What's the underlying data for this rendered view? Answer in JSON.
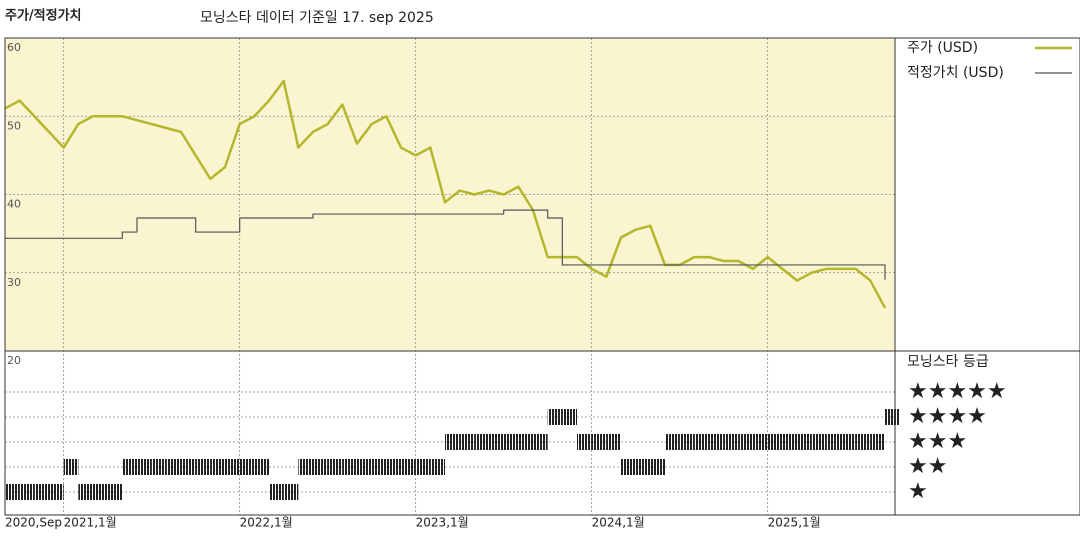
{
  "chart_data": [
    {
      "type": "line",
      "title": "주가/적정가치",
      "subtitle": "모닝스타 데이터 기준일 17. sep 2025",
      "x": [
        "2020-09",
        "2020-10",
        "2020-11",
        "2020-12",
        "2021-01",
        "2021-02",
        "2021-03",
        "2021-04",
        "2021-05",
        "2021-06",
        "2021-07",
        "2021-08",
        "2021-09",
        "2021-10",
        "2021-11",
        "2021-12",
        "2022-01",
        "2022-02",
        "2022-03",
        "2022-04",
        "2022-05",
        "2022-06",
        "2022-07",
        "2022-08",
        "2022-09",
        "2022-10",
        "2022-11",
        "2022-12",
        "2023-01",
        "2023-02",
        "2023-03",
        "2023-04",
        "2023-05",
        "2023-06",
        "2023-07",
        "2023-08",
        "2023-09",
        "2023-10",
        "2023-11",
        "2023-12",
        "2024-01",
        "2024-02",
        "2024-03",
        "2024-04",
        "2024-05",
        "2024-06",
        "2024-07",
        "2024-08",
        "2024-09",
        "2024-10",
        "2024-11",
        "2024-12",
        "2025-01",
        "2025-02",
        "2025-03",
        "2025-04",
        "2025-05",
        "2025-06",
        "2025-07",
        "2025-08",
        "2025-09"
      ],
      "series": [
        {
          "name": "주가 (USD)",
          "color": "#b3b72b",
          "values": [
            51,
            52,
            50,
            48,
            46,
            49,
            50,
            50,
            50,
            49.5,
            49,
            48.5,
            48,
            45,
            42,
            43.5,
            49,
            50,
            52,
            54.5,
            46,
            48,
            49,
            51.5,
            46.5,
            49,
            50,
            46,
            45,
            46,
            39,
            40.5,
            40,
            40.5,
            40,
            41,
            38,
            32,
            32,
            32,
            30.5,
            29.5,
            34.5,
            35.5,
            36,
            31,
            31,
            32,
            32,
            31.5,
            31.5,
            30.5,
            32,
            30.5,
            29,
            30,
            30.5,
            30.5,
            30.5,
            29,
            25.5
          ]
        },
        {
          "name": "적정가치 (USD)",
          "color": "#555555",
          "step": true,
          "values": [
            34.4,
            34.4,
            34.4,
            34.4,
            34.4,
            34.4,
            34.4,
            34.4,
            35.2,
            37,
            37,
            37,
            37,
            35.2,
            35.2,
            35.2,
            37,
            37,
            37,
            37,
            37,
            37.5,
            37.5,
            37.5,
            37.5,
            37.5,
            37.5,
            37.5,
            37.5,
            37.5,
            37.5,
            37.5,
            37.5,
            37.5,
            38,
            38,
            38,
            37,
            31,
            31,
            31,
            31,
            31,
            31,
            31,
            31,
            31,
            31,
            31,
            31,
            31,
            31,
            31,
            31,
            31,
            31,
            31,
            31,
            31,
            31,
            29.1
          ]
        }
      ],
      "xlim": [
        "2020-09",
        "2025-09"
      ],
      "xticks": [
        {
          "value": "2020-09",
          "label": "2020,Sep"
        },
        {
          "value": "2021-01",
          "label": "2021,1월"
        },
        {
          "value": "2022-01",
          "label": "2022,1월"
        },
        {
          "value": "2023-01",
          "label": "2023,1월"
        },
        {
          "value": "2024-01",
          "label": "2024,1월"
        },
        {
          "value": "2025-01",
          "label": "2025,1월"
        }
      ],
      "ylim": [
        20,
        60
      ],
      "yticks": [
        20,
        30,
        40,
        50,
        60
      ],
      "grid": true
    },
    {
      "type": "rating",
      "title": "모닝스타 등급",
      "categories": [
        "★",
        "★★",
        "★★★",
        "★★★★",
        "★★★★★"
      ],
      "x": [
        "2020-09",
        "2020-10",
        "2020-11",
        "2020-12",
        "2021-01",
        "2021-02",
        "2021-03",
        "2021-04",
        "2021-05",
        "2021-06",
        "2021-07",
        "2021-08",
        "2021-09",
        "2021-10",
        "2021-11",
        "2021-12",
        "2022-01",
        "2022-02",
        "2022-03",
        "2022-04",
        "2022-05",
        "2022-06",
        "2022-07",
        "2022-08",
        "2022-09",
        "2022-10",
        "2022-11",
        "2022-12",
        "2023-01",
        "2023-02",
        "2023-03",
        "2023-04",
        "2023-05",
        "2023-06",
        "2023-07",
        "2023-08",
        "2023-09",
        "2023-10",
        "2023-11",
        "2023-12",
        "2024-01",
        "2024-02",
        "2024-03",
        "2024-04",
        "2024-05",
        "2024-06",
        "2024-07",
        "2024-08",
        "2024-09",
        "2024-10",
        "2024-11",
        "2024-12",
        "2025-01",
        "2025-02",
        "2025-03",
        "2025-04",
        "2025-05",
        "2025-06",
        "2025-07",
        "2025-08",
        "2025-09"
      ],
      "values": [
        1,
        1,
        1,
        1,
        2,
        1,
        1,
        1,
        2,
        2,
        2,
        2,
        2,
        2,
        2,
        2,
        2,
        2,
        1,
        1,
        2,
        2,
        2,
        2,
        2,
        2,
        2,
        2,
        2,
        2,
        3,
        3,
        3,
        3,
        3,
        3,
        3,
        4,
        4,
        3,
        3,
        3,
        2,
        2,
        2,
        3,
        3,
        3,
        3,
        3,
        3,
        3,
        3,
        3,
        3,
        3,
        3,
        3,
        3,
        3,
        4
      ],
      "color": "#222222"
    }
  ]
}
